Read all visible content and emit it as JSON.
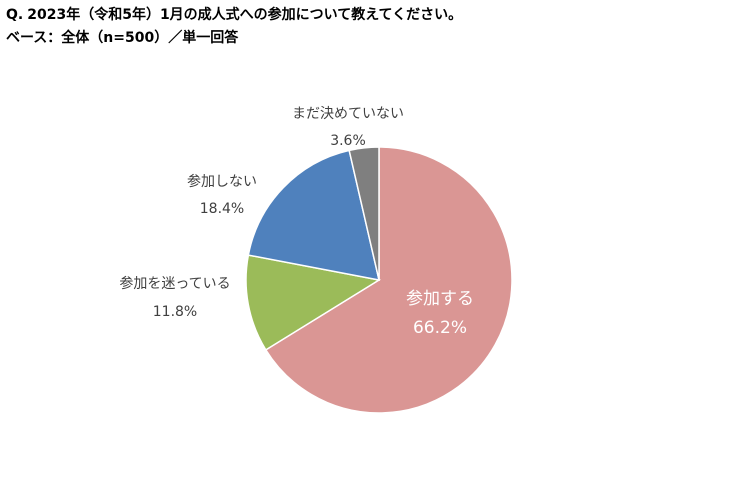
{
  "header": {
    "question_prefix": "Q.",
    "question_text": "2023年（令和5年）1月の成人式への参加について教えてください。",
    "base_line": "ベース：全体（n=500）／単一回答"
  },
  "chart_data": {
    "type": "pie",
    "title": "",
    "categories": [
      "参加する",
      "参加を迷っている",
      "参加しない",
      "まだ決めていない"
    ],
    "values": [
      66.2,
      11.8,
      18.4,
      3.6
    ],
    "value_labels": [
      "66.2%",
      "11.8%",
      "18.4%",
      "3.6%"
    ],
    "unit": "%",
    "colors": [
      "#DA9694",
      "#9BBB59",
      "#4F81BD",
      "#7F7F7F"
    ],
    "start_angle": "12 o'clock",
    "direction": "counterclockwise for all but first slice",
    "legend": "none (labels beside slices)"
  }
}
